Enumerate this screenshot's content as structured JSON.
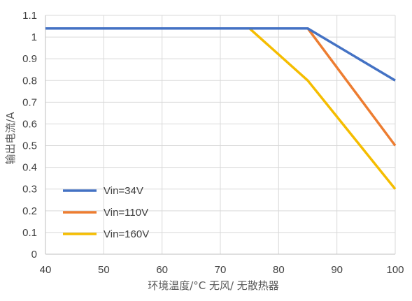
{
  "chart_data": {
    "type": "line",
    "xlabel": "环境温度/°C  无风/ 无散热器",
    "ylabel": "输出电流/A",
    "xlim": [
      40,
      100
    ],
    "ylim": [
      0,
      1.1
    ],
    "x_ticks": [
      "40",
      "50",
      "60",
      "70",
      "80",
      "90",
      "100"
    ],
    "y_ticks": [
      "0",
      "0.1",
      "0.2",
      "0.3",
      "0.4",
      "0.5",
      "0.6",
      "0.7",
      "0.8",
      "0.9",
      "1",
      "1.1"
    ],
    "grid": true,
    "legend_position": "bottom-left",
    "series": [
      {
        "name": "Vin=34V",
        "color": "#4472c4",
        "x": [
          40,
          85,
          100
        ],
        "y": [
          1.04,
          1.04,
          0.8
        ]
      },
      {
        "name": "Vin=110V",
        "color": "#ed7d31",
        "x": [
          40,
          85,
          100
        ],
        "y": [
          1.04,
          1.04,
          0.5
        ]
      },
      {
        "name": "Vin=160V",
        "color": "#f5bd00",
        "x": [
          40,
          75,
          85,
          100
        ],
        "y": [
          1.04,
          1.04,
          0.8,
          0.3
        ]
      }
    ]
  }
}
